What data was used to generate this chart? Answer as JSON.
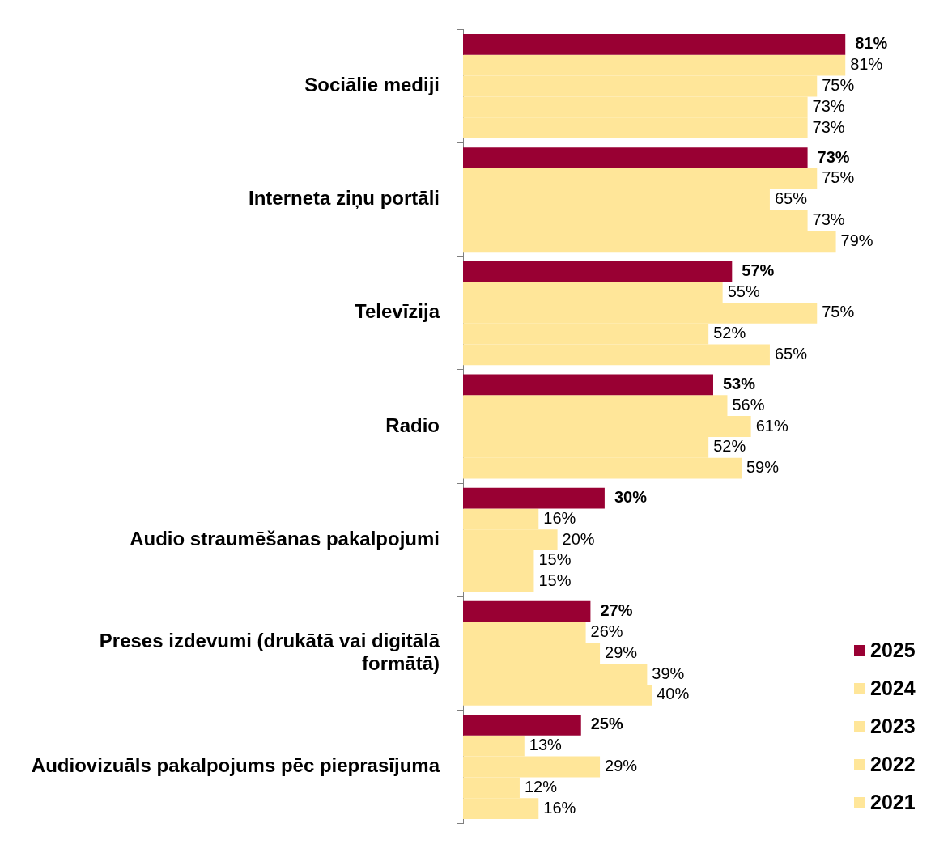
{
  "chart_data": {
    "type": "bar",
    "orientation": "horizontal",
    "categories": [
      "Sociālie mediji",
      "Interneta ziņu portāli",
      "Televīzija",
      "Radio",
      "Audio straumēšanas pakalpojumi",
      "Preses izdevumi (drukātā vai digitālā formātā)",
      "Audiovizuāls pakalpojums pēc pieprasījuma"
    ],
    "series": [
      {
        "name": "2025",
        "color": "#990033",
        "values": [
          81,
          73,
          57,
          53,
          30,
          27,
          25
        ],
        "value_labels": [
          "81%",
          "73%",
          "57%",
          "53%",
          "30%",
          "27%",
          "25%"
        ]
      },
      {
        "name": "2024",
        "color": "#ffe699",
        "values": [
          81,
          75,
          55,
          56,
          16,
          26,
          13
        ],
        "value_labels": [
          "81%",
          "75%",
          "55%",
          "56%",
          "16%",
          "26%",
          "13%"
        ]
      },
      {
        "name": "2023",
        "color": "#ffe699",
        "values": [
          75,
          65,
          75,
          61,
          20,
          29,
          29
        ],
        "value_labels": [
          "75%",
          "65%",
          "75%",
          "61%",
          "20%",
          "29%",
          "29%"
        ]
      },
      {
        "name": "2022",
        "color": "#ffe699",
        "values": [
          73,
          73,
          52,
          52,
          15,
          39,
          12
        ],
        "value_labels": [
          "73%",
          "73%",
          "52%",
          "52%",
          "15%",
          "39%",
          "12%"
        ]
      },
      {
        "name": "2021",
        "color": "#ffe699",
        "values": [
          73,
          79,
          65,
          59,
          15,
          40,
          16
        ],
        "value_labels": [
          "73%",
          "79%",
          "65%",
          "59%",
          "15%",
          "40%",
          "16%"
        ]
      }
    ],
    "tick_labels": "y",
    "legend": "bottom right"
  }
}
